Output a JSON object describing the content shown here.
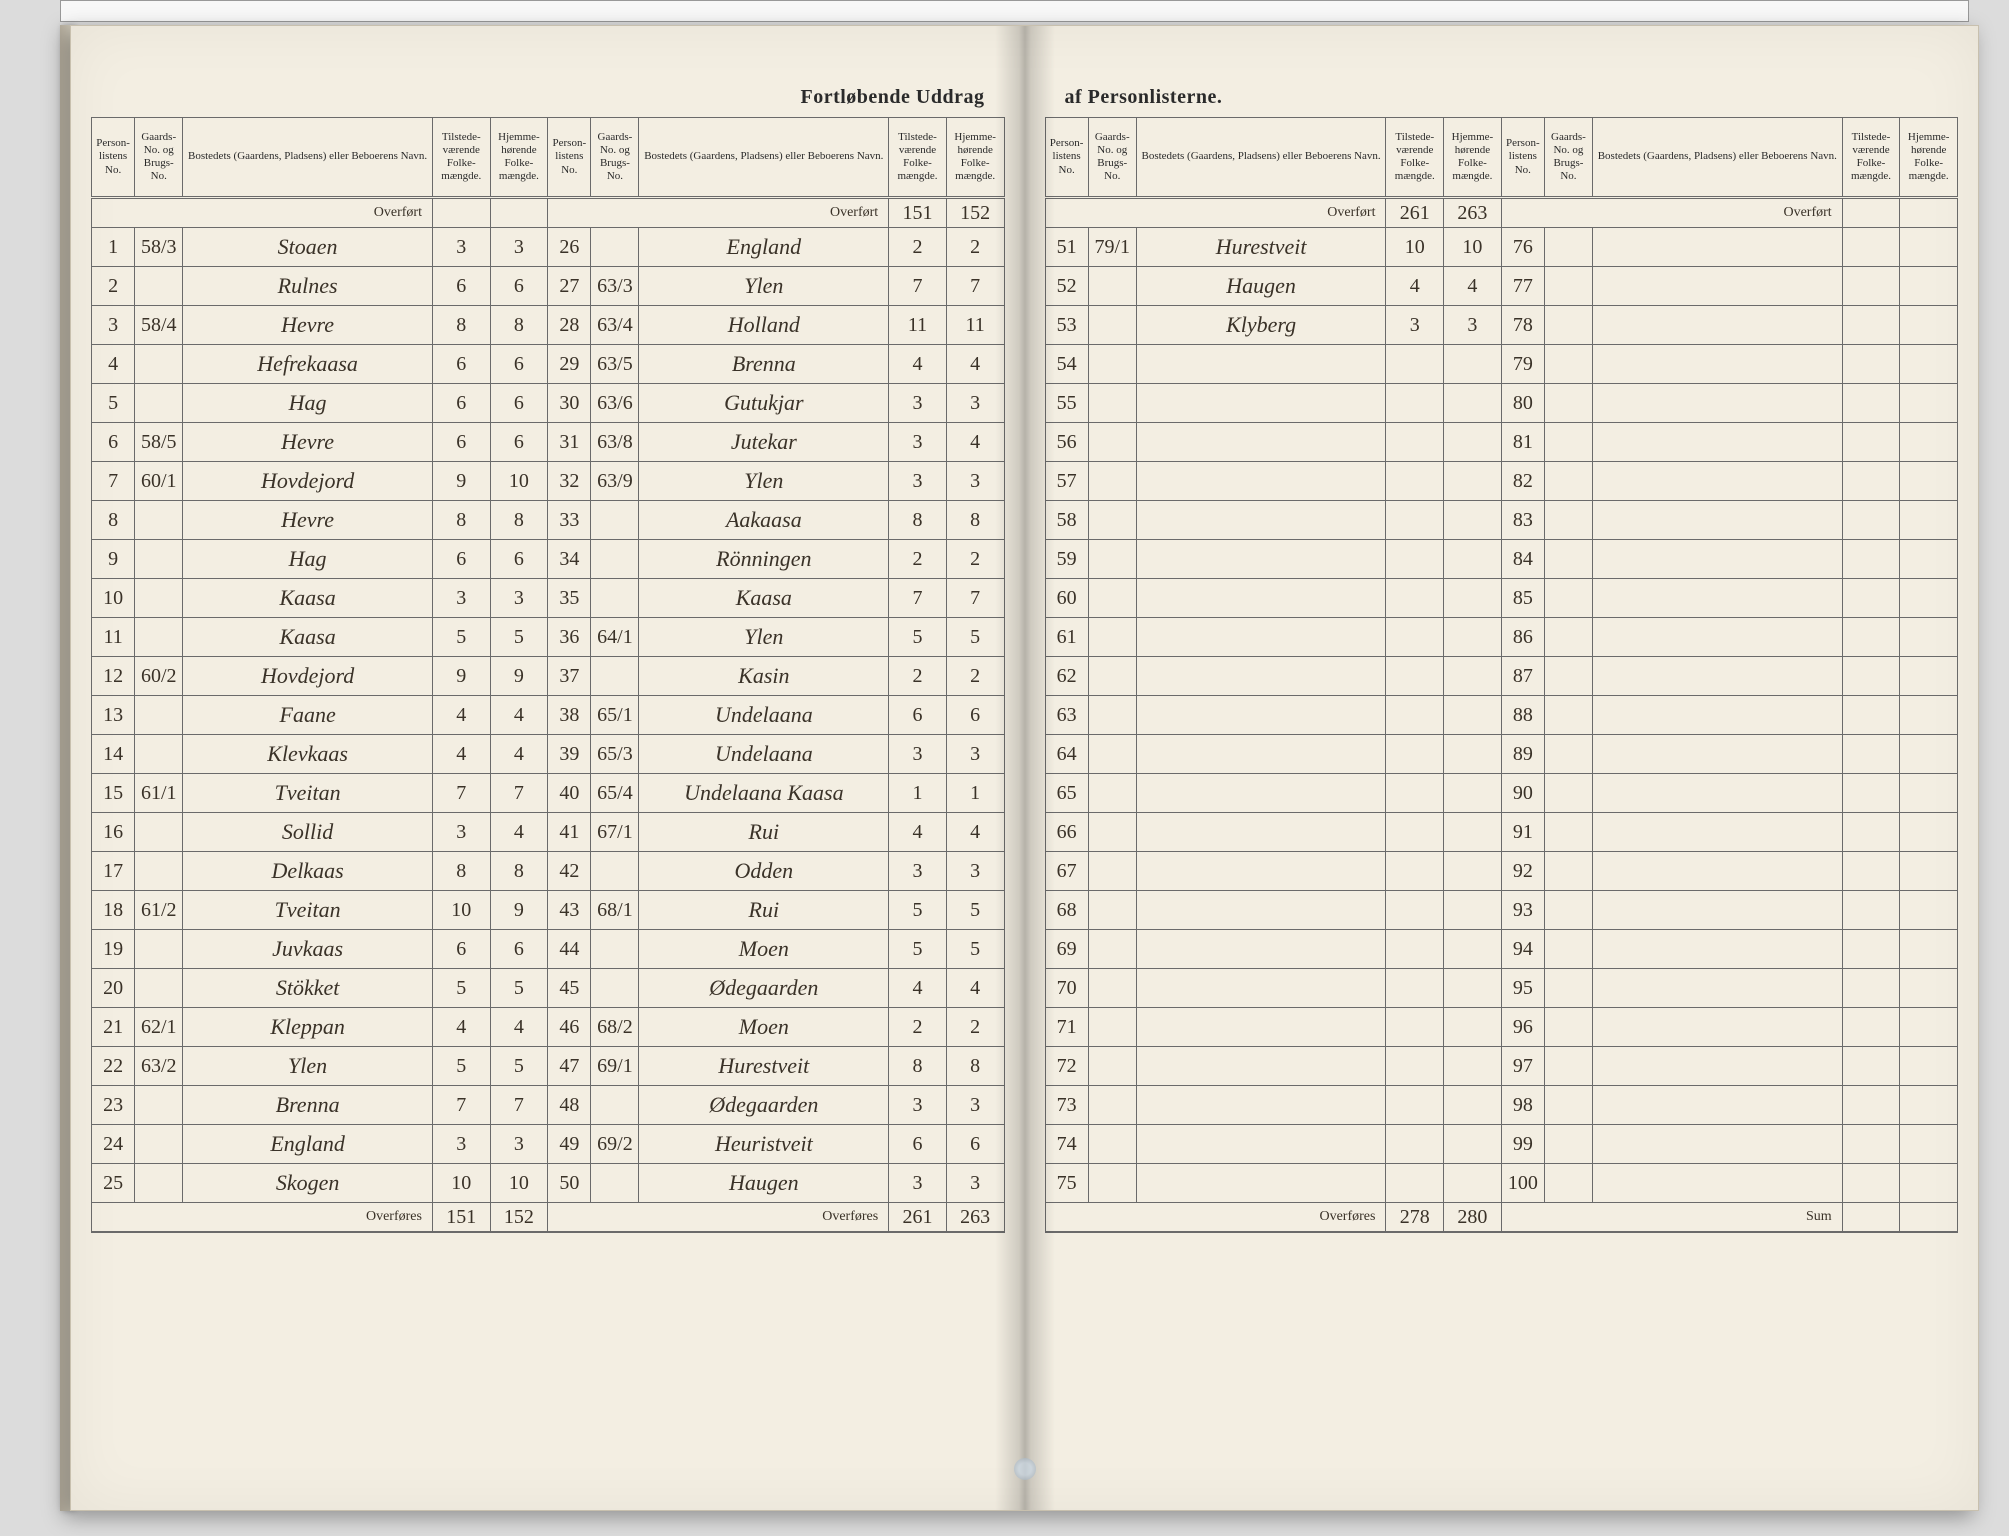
{
  "title_left": "Fortløbende Uddrag",
  "title_right": "af Personlisterne.",
  "headers": {
    "personliste_no": "Person-listens No.",
    "gaards_no": "Gaards-No. og Brugs-No.",
    "bosted": "Bostedets (Gaardens, Pladsens) eller Beboerens Navn.",
    "tilstede": "Tilstede-værende Folke-mængde.",
    "hjemme": "Hjemme-hørende Folke-mængde."
  },
  "overfort_label": "Overført",
  "overfores_label": "Overføres",
  "sum_label": "Sum",
  "panel1": {
    "overfort": [
      "",
      ""
    ],
    "rows": [
      {
        "n": "1",
        "g": "58/3",
        "name": "Stoaen",
        "t": "3",
        "h": "3"
      },
      {
        "n": "2",
        "g": "",
        "name": "Rulnes",
        "t": "6",
        "h": "6"
      },
      {
        "n": "3",
        "g": "58/4",
        "name": "Hevre",
        "t": "8",
        "h": "8"
      },
      {
        "n": "4",
        "g": "",
        "name": "Hefrekaasa",
        "t": "6",
        "h": "6"
      },
      {
        "n": "5",
        "g": "",
        "name": "Hag",
        "t": "6",
        "h": "6"
      },
      {
        "n": "6",
        "g": "58/5",
        "name": "Hevre",
        "t": "6",
        "h": "6"
      },
      {
        "n": "7",
        "g": "60/1",
        "name": "Hovdejord",
        "t": "9",
        "h": "10"
      },
      {
        "n": "8",
        "g": "",
        "name": "Hevre",
        "t": "8",
        "h": "8"
      },
      {
        "n": "9",
        "g": "",
        "name": "Hag",
        "t": "6",
        "h": "6"
      },
      {
        "n": "10",
        "g": "",
        "name": "Kaasa",
        "t": "3",
        "h": "3"
      },
      {
        "n": "11",
        "g": "",
        "name": "Kaasa",
        "t": "5",
        "h": "5"
      },
      {
        "n": "12",
        "g": "60/2",
        "name": "Hovdejord",
        "t": "9",
        "h": "9"
      },
      {
        "n": "13",
        "g": "",
        "name": "Faane",
        "t": "4",
        "h": "4"
      },
      {
        "n": "14",
        "g": "",
        "name": "Klevkaas",
        "t": "4",
        "h": "4"
      },
      {
        "n": "15",
        "g": "61/1",
        "name": "Tveitan",
        "t": "7",
        "h": "7"
      },
      {
        "n": "16",
        "g": "",
        "name": "Sollid",
        "t": "3",
        "h": "4"
      },
      {
        "n": "17",
        "g": "",
        "name": "Delkaas",
        "t": "8",
        "h": "8"
      },
      {
        "n": "18",
        "g": "61/2",
        "name": "Tveitan",
        "t": "10",
        "h": "9"
      },
      {
        "n": "19",
        "g": "",
        "name": "Juvkaas",
        "t": "6",
        "h": "6"
      },
      {
        "n": "20",
        "g": "",
        "name": "Stökket",
        "t": "5",
        "h": "5"
      },
      {
        "n": "21",
        "g": "62/1",
        "name": "Kleppan",
        "t": "4",
        "h": "4"
      },
      {
        "n": "22",
        "g": "63/2",
        "name": "Ylen",
        "t": "5",
        "h": "5"
      },
      {
        "n": "23",
        "g": "",
        "name": "Brenna",
        "t": "7",
        "h": "7"
      },
      {
        "n": "24",
        "g": "",
        "name": "England",
        "t": "3",
        "h": "3"
      },
      {
        "n": "25",
        "g": "",
        "name": "Skogen",
        "t": "10",
        "h": "10"
      }
    ],
    "overfores": [
      "151",
      "152"
    ]
  },
  "panel2": {
    "overfort": [
      "151",
      "152"
    ],
    "rows": [
      {
        "n": "26",
        "g": "",
        "name": "England",
        "t": "2",
        "h": "2"
      },
      {
        "n": "27",
        "g": "63/3",
        "name": "Ylen",
        "t": "7",
        "h": "7"
      },
      {
        "n": "28",
        "g": "63/4",
        "name": "Holland",
        "t": "11",
        "h": "11"
      },
      {
        "n": "29",
        "g": "63/5",
        "name": "Brenna",
        "t": "4",
        "h": "4"
      },
      {
        "n": "30",
        "g": "63/6",
        "name": "Gutukjar",
        "t": "3",
        "h": "3"
      },
      {
        "n": "31",
        "g": "63/8",
        "name": "Jutekar",
        "t": "3",
        "h": "4"
      },
      {
        "n": "32",
        "g": "63/9",
        "name": "Ylen",
        "t": "3",
        "h": "3"
      },
      {
        "n": "33",
        "g": "",
        "name": "Aakaasa",
        "t": "8",
        "h": "8"
      },
      {
        "n": "34",
        "g": "",
        "name": "Rönningen",
        "t": "2",
        "h": "2"
      },
      {
        "n": "35",
        "g": "",
        "name": "Kaasa",
        "t": "7",
        "h": "7"
      },
      {
        "n": "36",
        "g": "64/1",
        "name": "Ylen",
        "t": "5",
        "h": "5"
      },
      {
        "n": "37",
        "g": "",
        "name": "Kasin",
        "t": "2",
        "h": "2"
      },
      {
        "n": "38",
        "g": "65/1",
        "name": "Undelaana",
        "t": "6",
        "h": "6"
      },
      {
        "n": "39",
        "g": "65/3",
        "name": "Undelaana",
        "t": "3",
        "h": "3"
      },
      {
        "n": "40",
        "g": "65/4",
        "name": "Undelaana Kaasa",
        "t": "1",
        "h": "1"
      },
      {
        "n": "41",
        "g": "67/1",
        "name": "Rui",
        "t": "4",
        "h": "4"
      },
      {
        "n": "42",
        "g": "",
        "name": "Odden",
        "t": "3",
        "h": "3"
      },
      {
        "n": "43",
        "g": "68/1",
        "name": "Rui",
        "t": "5",
        "h": "5"
      },
      {
        "n": "44",
        "g": "",
        "name": "Moen",
        "t": "5",
        "h": "5"
      },
      {
        "n": "45",
        "g": "",
        "name": "Ødegaarden",
        "t": "4",
        "h": "4"
      },
      {
        "n": "46",
        "g": "68/2",
        "name": "Moen",
        "t": "2",
        "h": "2"
      },
      {
        "n": "47",
        "g": "69/1",
        "name": "Hurestveit",
        "t": "8",
        "h": "8"
      },
      {
        "n": "48",
        "g": "",
        "name": "Ødegaarden",
        "t": "3",
        "h": "3"
      },
      {
        "n": "49",
        "g": "69/2",
        "name": "Heuristveit",
        "t": "6",
        "h": "6"
      },
      {
        "n": "50",
        "g": "",
        "name": "Haugen",
        "t": "3",
        "h": "3"
      }
    ],
    "overfores": [
      "261",
      "263"
    ]
  },
  "panel3": {
    "overfort": [
      "261",
      "263"
    ],
    "rows": [
      {
        "n": "51",
        "g": "79/1",
        "name": "Hurestveit",
        "t": "10",
        "h": "10"
      },
      {
        "n": "52",
        "g": "",
        "name": "Haugen",
        "t": "4",
        "h": "4"
      },
      {
        "n": "53",
        "g": "",
        "name": "Klyberg",
        "t": "3",
        "h": "3"
      },
      {
        "n": "54",
        "g": "",
        "name": "",
        "t": "",
        "h": ""
      },
      {
        "n": "55",
        "g": "",
        "name": "",
        "t": "",
        "h": ""
      },
      {
        "n": "56",
        "g": "",
        "name": "",
        "t": "",
        "h": ""
      },
      {
        "n": "57",
        "g": "",
        "name": "",
        "t": "",
        "h": ""
      },
      {
        "n": "58",
        "g": "",
        "name": "",
        "t": "",
        "h": ""
      },
      {
        "n": "59",
        "g": "",
        "name": "",
        "t": "",
        "h": ""
      },
      {
        "n": "60",
        "g": "",
        "name": "",
        "t": "",
        "h": ""
      },
      {
        "n": "61",
        "g": "",
        "name": "",
        "t": "",
        "h": ""
      },
      {
        "n": "62",
        "g": "",
        "name": "",
        "t": "",
        "h": ""
      },
      {
        "n": "63",
        "g": "",
        "name": "",
        "t": "",
        "h": ""
      },
      {
        "n": "64",
        "g": "",
        "name": "",
        "t": "",
        "h": ""
      },
      {
        "n": "65",
        "g": "",
        "name": "",
        "t": "",
        "h": ""
      },
      {
        "n": "66",
        "g": "",
        "name": "",
        "t": "",
        "h": ""
      },
      {
        "n": "67",
        "g": "",
        "name": "",
        "t": "",
        "h": ""
      },
      {
        "n": "68",
        "g": "",
        "name": "",
        "t": "",
        "h": ""
      },
      {
        "n": "69",
        "g": "",
        "name": "",
        "t": "",
        "h": ""
      },
      {
        "n": "70",
        "g": "",
        "name": "",
        "t": "",
        "h": ""
      },
      {
        "n": "71",
        "g": "",
        "name": "",
        "t": "",
        "h": ""
      },
      {
        "n": "72",
        "g": "",
        "name": "",
        "t": "",
        "h": ""
      },
      {
        "n": "73",
        "g": "",
        "name": "",
        "t": "",
        "h": ""
      },
      {
        "n": "74",
        "g": "",
        "name": "",
        "t": "",
        "h": ""
      },
      {
        "n": "75",
        "g": "",
        "name": "",
        "t": "",
        "h": ""
      }
    ],
    "overfores": [
      "278",
      "280"
    ]
  },
  "panel4": {
    "overfort": [
      "",
      ""
    ],
    "rows": [
      {
        "n": "76",
        "g": "",
        "name": "",
        "t": "",
        "h": ""
      },
      {
        "n": "77",
        "g": "",
        "name": "",
        "t": "",
        "h": ""
      },
      {
        "n": "78",
        "g": "",
        "name": "",
        "t": "",
        "h": ""
      },
      {
        "n": "79",
        "g": "",
        "name": "",
        "t": "",
        "h": ""
      },
      {
        "n": "80",
        "g": "",
        "name": "",
        "t": "",
        "h": ""
      },
      {
        "n": "81",
        "g": "",
        "name": "",
        "t": "",
        "h": ""
      },
      {
        "n": "82",
        "g": "",
        "name": "",
        "t": "",
        "h": ""
      },
      {
        "n": "83",
        "g": "",
        "name": "",
        "t": "",
        "h": ""
      },
      {
        "n": "84",
        "g": "",
        "name": "",
        "t": "",
        "h": ""
      },
      {
        "n": "85",
        "g": "",
        "name": "",
        "t": "",
        "h": ""
      },
      {
        "n": "86",
        "g": "",
        "name": "",
        "t": "",
        "h": ""
      },
      {
        "n": "87",
        "g": "",
        "name": "",
        "t": "",
        "h": ""
      },
      {
        "n": "88",
        "g": "",
        "name": "",
        "t": "",
        "h": ""
      },
      {
        "n": "89",
        "g": "",
        "name": "",
        "t": "",
        "h": ""
      },
      {
        "n": "90",
        "g": "",
        "name": "",
        "t": "",
        "h": ""
      },
      {
        "n": "91",
        "g": "",
        "name": "",
        "t": "",
        "h": ""
      },
      {
        "n": "92",
        "g": "",
        "name": "",
        "t": "",
        "h": ""
      },
      {
        "n": "93",
        "g": "",
        "name": "",
        "t": "",
        "h": ""
      },
      {
        "n": "94",
        "g": "",
        "name": "",
        "t": "",
        "h": ""
      },
      {
        "n": "95",
        "g": "",
        "name": "",
        "t": "",
        "h": ""
      },
      {
        "n": "96",
        "g": "",
        "name": "",
        "t": "",
        "h": ""
      },
      {
        "n": "97",
        "g": "",
        "name": "",
        "t": "",
        "h": ""
      },
      {
        "n": "98",
        "g": "",
        "name": "",
        "t": "",
        "h": ""
      },
      {
        "n": "99",
        "g": "",
        "name": "",
        "t": "",
        "h": ""
      },
      {
        "n": "100",
        "g": "",
        "name": "",
        "t": "",
        "h": ""
      }
    ],
    "overfores": [
      "",
      ""
    ]
  }
}
